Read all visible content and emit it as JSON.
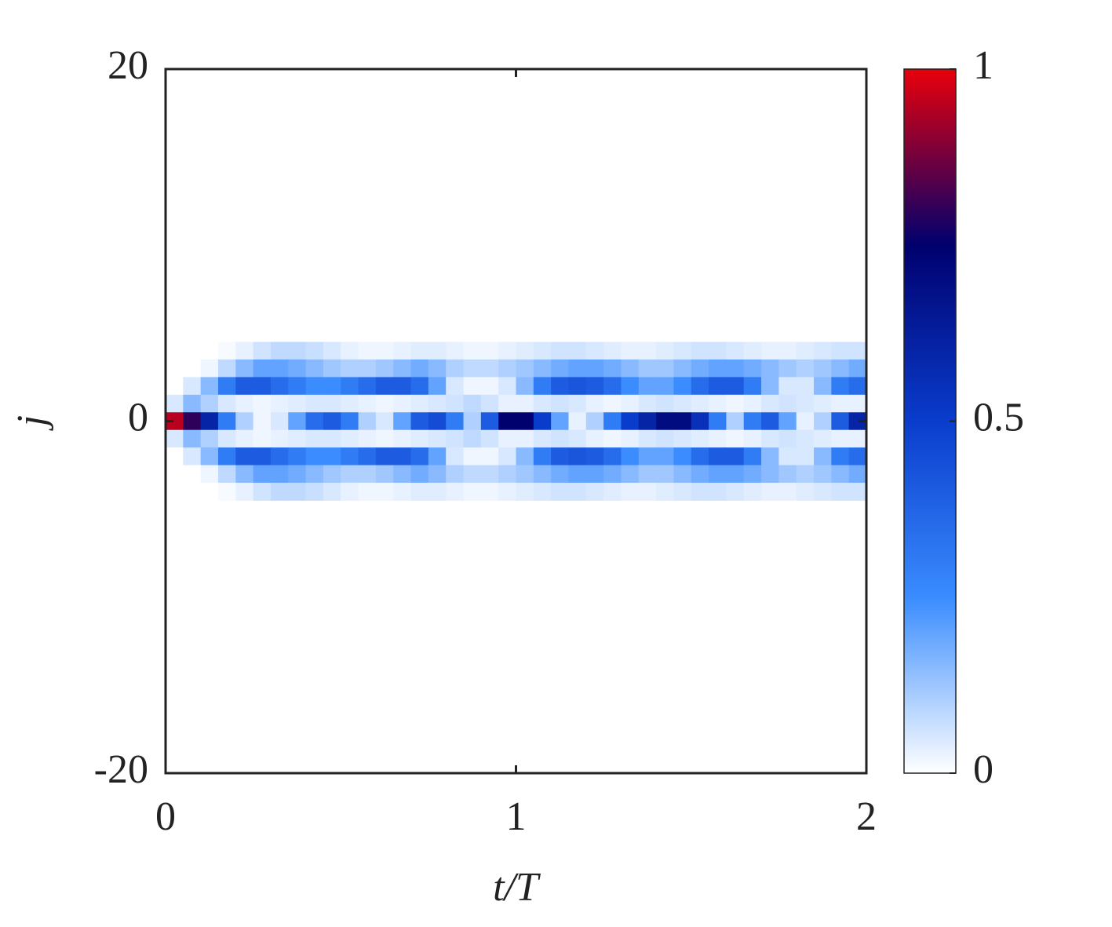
{
  "chart_data": {
    "type": "heatmap",
    "xlabel": "t/T",
    "ylabel": "j",
    "xlim": [
      0,
      2
    ],
    "xticks": [
      0,
      1,
      2
    ],
    "ylim": [
      -20,
      20
    ],
    "yticks": [
      -20,
      0,
      20
    ],
    "zlim": [
      0,
      1
    ],
    "zticks": [
      0,
      0.5,
      1
    ],
    "colormap": [
      "#ffffff",
      "#3a8cff",
      "#0a3ccc",
      "#00006e",
      "#e8000b"
    ],
    "x": [
      0.025,
      0.075,
      0.125,
      0.175,
      0.225,
      0.275,
      0.325,
      0.375,
      0.425,
      0.475,
      0.525,
      0.575,
      0.625,
      0.675,
      0.725,
      0.775,
      0.825,
      0.875,
      0.925,
      0.975,
      1.025,
      1.075,
      1.125,
      1.175,
      1.225,
      1.275,
      1.325,
      1.375,
      1.425,
      1.475,
      1.525,
      1.575,
      1.625,
      1.675,
      1.725,
      1.775,
      1.825,
      1.875,
      1.925,
      1.975
    ],
    "y": [
      4,
      3,
      2,
      1,
      0,
      -1,
      -2,
      -3,
      -4
    ],
    "z": [
      [
        0,
        0,
        0,
        0.01,
        0.03,
        0.06,
        0.08,
        0.08,
        0.07,
        0.05,
        0.03,
        0.02,
        0.02,
        0.03,
        0.04,
        0.04,
        0.03,
        0.02,
        0.02,
        0.03,
        0.04,
        0.05,
        0.06,
        0.06,
        0.05,
        0.04,
        0.03,
        0.03,
        0.04,
        0.05,
        0.06,
        0.06,
        0.05,
        0.04,
        0.03,
        0.03,
        0.04,
        0.05,
        0.06,
        0.06
      ],
      [
        0,
        0,
        0.02,
        0.08,
        0.15,
        0.2,
        0.2,
        0.18,
        0.15,
        0.12,
        0.1,
        0.1,
        0.12,
        0.15,
        0.18,
        0.15,
        0.1,
        0.08,
        0.08,
        0.1,
        0.12,
        0.15,
        0.18,
        0.2,
        0.2,
        0.18,
        0.15,
        0.12,
        0.12,
        0.15,
        0.18,
        0.2,
        0.2,
        0.18,
        0.15,
        0.12,
        0.1,
        0.12,
        0.15,
        0.18
      ],
      [
        0,
        0.05,
        0.15,
        0.3,
        0.4,
        0.4,
        0.35,
        0.3,
        0.25,
        0.25,
        0.3,
        0.35,
        0.4,
        0.4,
        0.35,
        0.2,
        0.05,
        0.02,
        0.02,
        0.05,
        0.15,
        0.3,
        0.4,
        0.42,
        0.4,
        0.35,
        0.25,
        0.2,
        0.2,
        0.25,
        0.35,
        0.4,
        0.4,
        0.3,
        0.15,
        0.05,
        0.05,
        0.15,
        0.3,
        0.35
      ],
      [
        0.05,
        0.15,
        0.1,
        0.05,
        0.03,
        0.02,
        0.03,
        0.04,
        0.05,
        0.05,
        0.04,
        0.03,
        0.02,
        0.03,
        0.04,
        0.05,
        0.06,
        0.08,
        0.06,
        0.03,
        0.03,
        0.05,
        0.06,
        0.05,
        0.03,
        0.02,
        0.03,
        0.05,
        0.06,
        0.05,
        0.04,
        0.03,
        0.02,
        0.03,
        0.05,
        0.06,
        0.05,
        0.04,
        0.03,
        0.03
      ],
      [
        0.95,
        0.8,
        0.6,
        0.3,
        0.1,
        0.02,
        0.05,
        0.2,
        0.35,
        0.4,
        0.3,
        0.1,
        0.05,
        0.2,
        0.4,
        0.45,
        0.3,
        0.1,
        0.4,
        0.75,
        0.75,
        0.5,
        0.2,
        0.03,
        0.1,
        0.3,
        0.5,
        0.6,
        0.7,
        0.7,
        0.55,
        0.3,
        0.1,
        0.3,
        0.4,
        0.2,
        0.03,
        0.1,
        0.4,
        0.6
      ],
      [
        0.05,
        0.15,
        0.1,
        0.05,
        0.03,
        0.02,
        0.03,
        0.04,
        0.05,
        0.05,
        0.04,
        0.03,
        0.02,
        0.03,
        0.04,
        0.05,
        0.06,
        0.08,
        0.06,
        0.03,
        0.03,
        0.05,
        0.06,
        0.05,
        0.03,
        0.02,
        0.03,
        0.05,
        0.06,
        0.05,
        0.04,
        0.03,
        0.02,
        0.03,
        0.05,
        0.06,
        0.05,
        0.04,
        0.03,
        0.03
      ],
      [
        0,
        0.05,
        0.15,
        0.3,
        0.4,
        0.4,
        0.35,
        0.3,
        0.25,
        0.25,
        0.3,
        0.35,
        0.4,
        0.4,
        0.35,
        0.2,
        0.05,
        0.02,
        0.02,
        0.05,
        0.15,
        0.3,
        0.4,
        0.42,
        0.4,
        0.35,
        0.25,
        0.2,
        0.2,
        0.25,
        0.35,
        0.4,
        0.4,
        0.3,
        0.15,
        0.05,
        0.05,
        0.15,
        0.3,
        0.35
      ],
      [
        0,
        0,
        0.02,
        0.08,
        0.15,
        0.2,
        0.2,
        0.18,
        0.15,
        0.12,
        0.1,
        0.1,
        0.12,
        0.15,
        0.18,
        0.15,
        0.1,
        0.08,
        0.08,
        0.1,
        0.12,
        0.15,
        0.18,
        0.2,
        0.2,
        0.18,
        0.15,
        0.12,
        0.12,
        0.15,
        0.18,
        0.2,
        0.2,
        0.18,
        0.15,
        0.12,
        0.1,
        0.12,
        0.15,
        0.18
      ],
      [
        0,
        0,
        0,
        0.01,
        0.03,
        0.06,
        0.08,
        0.08,
        0.07,
        0.05,
        0.03,
        0.02,
        0.02,
        0.03,
        0.04,
        0.04,
        0.03,
        0.02,
        0.02,
        0.03,
        0.04,
        0.05,
        0.06,
        0.06,
        0.05,
        0.04,
        0.03,
        0.03,
        0.04,
        0.05,
        0.06,
        0.06,
        0.05,
        0.04,
        0.03,
        0.03,
        0.04,
        0.05,
        0.06,
        0.06
      ]
    ]
  }
}
